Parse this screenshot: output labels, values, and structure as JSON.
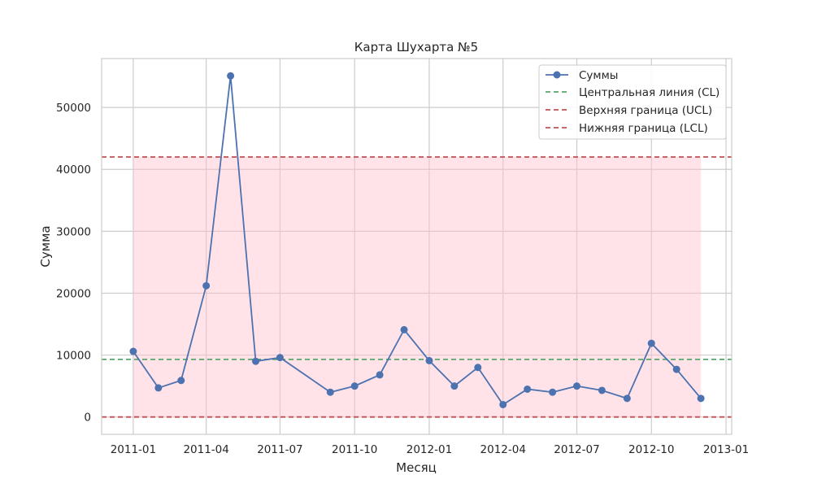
{
  "chart_data": {
    "type": "line",
    "title": "Карта Шухарта №5",
    "xlabel": "Месяц",
    "ylabel": "Сумма",
    "x_tick_labels": [
      "2011-01",
      "2011-04",
      "2011-07",
      "2011-10",
      "2012-01",
      "2012-04",
      "2012-07",
      "2012-10",
      "2013-01"
    ],
    "y_tick_labels": [
      "0",
      "10000",
      "20000",
      "30000",
      "40000",
      "50000"
    ],
    "y_ticks": [
      0,
      10000,
      20000,
      30000,
      40000,
      50000
    ],
    "x_ticks": [
      "2011-01-01",
      "2011-04-01",
      "2011-07-01",
      "2011-10-01",
      "2012-01-01",
      "2012-04-01",
      "2012-07-01",
      "2012-10-01",
      "2013-01-01"
    ],
    "xlim": [
      "2010-11-23",
      "2013-01-08"
    ],
    "ylim": [
      -2800,
      57900
    ],
    "grid": true,
    "legend_position": "top-right",
    "series": [
      {
        "name": "Суммы",
        "color": "#4c72b0",
        "style": "line-with-markers",
        "x": [
          "2011-01-01",
          "2011-02-01",
          "2011-03-01",
          "2011-04-01",
          "2011-05-01",
          "2011-06-01",
          "2011-07-01",
          "2011-09-01",
          "2011-10-01",
          "2011-11-01",
          "2011-12-01",
          "2012-01-01",
          "2012-02-01",
          "2012-03-01",
          "2012-04-01",
          "2012-05-01",
          "2012-06-01",
          "2012-07-01",
          "2012-08-01",
          "2012-09-01",
          "2012-10-01",
          "2012-11-01",
          "2012-12-01"
        ],
        "y": [
          10600,
          4700,
          5900,
          21200,
          55100,
          9000,
          9600,
          4000,
          5000,
          6800,
          14100,
          9100,
          5000,
          8000,
          2000,
          4500,
          4000,
          5000,
          4300,
          3000,
          11900,
          7700,
          3000
        ]
      }
    ],
    "reference_lines": [
      {
        "name": "Центральная линия (CL)",
        "y": 9300,
        "color": "#55a868"
      },
      {
        "name": "Верхняя граница (UCL)",
        "y": 42000,
        "color": "#c44e52"
      },
      {
        "name": "Нижняя граница (LCL)",
        "y": 0,
        "color": "#c44e52"
      }
    ],
    "band": {
      "y_from": 0,
      "y_to": 42000,
      "x_from": "2011-01-01",
      "x_to": "2012-12-01",
      "color": "#ffc0cb"
    }
  }
}
